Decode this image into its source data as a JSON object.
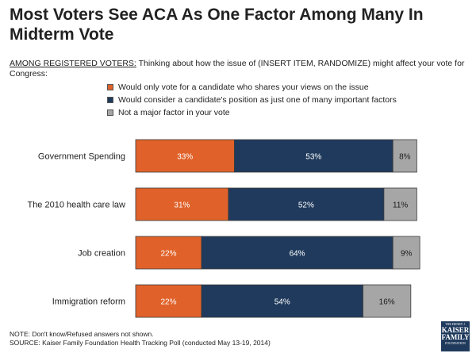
{
  "title": "Most Voters See ACA As One Factor Among Many In Midterm Vote",
  "subtitle": {
    "prefix": "AMONG REGISTERED VOTERS:",
    "text": " Thinking about how the issue of (INSERT ITEM, RANDOMIZE) might affect your vote for Congress:"
  },
  "colors": {
    "only": "#e0622a",
    "consider": "#1f3a5c",
    "notmajor": "#a6a6a6"
  },
  "chart_data": {
    "type": "bar",
    "orientation": "horizontal",
    "stacked": true,
    "title": "Most Voters See ACA As One Factor Among Many In Midterm Vote",
    "xlim": [
      0,
      100
    ],
    "categories": [
      "Government Spending",
      "The 2010 health care law",
      "Job creation",
      "Immigration reform"
    ],
    "series": [
      {
        "name": "Would only vote for a candidate who shares your views on the issue",
        "key": "only",
        "values": [
          33,
          31,
          22,
          22
        ]
      },
      {
        "name": "Would consider a candidate's position as just one of many important factors",
        "key": "consider",
        "values": [
          53,
          52,
          64,
          54
        ]
      },
      {
        "name": "Not a major factor in your vote",
        "key": "notmajor",
        "values": [
          8,
          11,
          9,
          16
        ]
      }
    ],
    "legend_position": "top"
  },
  "footer": {
    "note": "NOTE: Don't know/Refused answers not shown.",
    "source": "SOURCE: Kaiser Family Foundation Health Tracking Poll (conducted May 13-19, 2014)"
  },
  "logo": {
    "line1": "THE HENRY J.",
    "line2": "KAISER",
    "line3": "FAMILY",
    "line4": "FOUNDATION"
  }
}
